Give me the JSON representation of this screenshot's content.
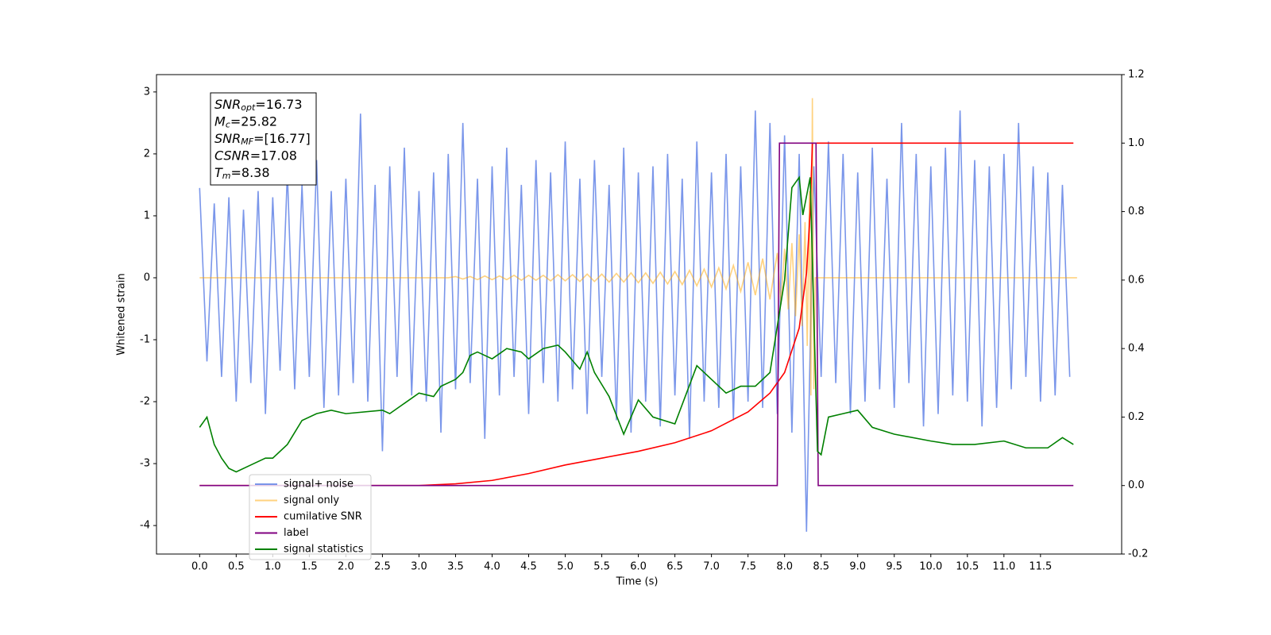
{
  "chart_data": {
    "type": "line",
    "xlabel": "Time (s)",
    "ylabel": "Whitened strain",
    "xlim": [
      -0.59,
      12.61
    ],
    "ylim": [
      -4.46,
      3.28
    ],
    "y2lim": [
      -0.2,
      1.2
    ],
    "xticks": [
      {
        "value": 0,
        "label": "0.0"
      },
      0.5,
      {
        "value": 1,
        "label": "1.0"
      },
      1.5,
      {
        "value": 2,
        "label": "2.0"
      },
      2.5,
      {
        "value": 3,
        "label": "3.0"
      },
      3.5,
      {
        "value": 4,
        "label": "4.0"
      },
      4.5,
      {
        "value": 5,
        "label": "5.0"
      },
      5.5,
      {
        "value": 6,
        "label": "6.0"
      },
      6.5,
      {
        "value": 7,
        "label": "7.0"
      },
      7.5,
      {
        "value": 8,
        "label": "8.0"
      },
      8.5,
      {
        "value": 9,
        "label": "9.0"
      },
      9.5,
      {
        "value": 10,
        "label": "10.0"
      },
      10.5,
      {
        "value": 11,
        "label": "11.0"
      },
      11.5
    ],
    "yticks": [
      -4,
      -3,
      -2,
      -1,
      0,
      1,
      2,
      3
    ],
    "y2ticks": [
      -0.2,
      {
        "value": 0,
        "label": "0.0"
      },
      0.2,
      0.4,
      0.6,
      0.8,
      {
        "value": 1,
        "label": "1.0"
      },
      1.2
    ],
    "legend": true,
    "annotation": [
      {
        "main": "SNR",
        "sub": "opt",
        "text": "=16.73"
      },
      {
        "main": "M",
        "sub": "c",
        "text": "=25.82"
      },
      {
        "main": "SNR",
        "sub": "MF",
        "text": "=[16.77]"
      },
      {
        "main": "CSNR",
        "text": "=17.08"
      },
      {
        "main": "T",
        "sub": "m",
        "text": "=8.38"
      }
    ],
    "series": [
      {
        "name": "signal+ noise",
        "color": "#4169e1",
        "alpha": 0.7,
        "x": [
          0,
          0.1,
          0.2,
          0.3,
          0.4,
          0.5,
          0.6,
          0.7,
          0.8,
          0.9,
          1,
          1.1,
          1.2,
          1.3,
          1.4,
          1.5,
          1.6,
          1.7,
          1.8,
          1.9,
          2,
          2.1,
          2.2,
          2.3,
          2.4,
          2.5,
          2.6,
          2.7,
          2.8,
          2.9,
          3,
          3.1,
          3.2,
          3.3,
          3.4,
          3.5,
          3.6,
          3.7,
          3.8,
          3.9,
          4,
          4.1,
          4.2,
          4.3,
          4.4,
          4.5,
          4.6,
          4.7,
          4.8,
          4.9,
          5,
          5.1,
          5.2,
          5.3,
          5.4,
          5.5,
          5.6,
          5.7,
          5.8,
          5.9,
          6,
          6.1,
          6.2,
          6.3,
          6.4,
          6.5,
          6.6,
          6.7,
          6.8,
          6.9,
          7,
          7.1,
          7.2,
          7.3,
          7.4,
          7.5,
          7.6,
          7.7,
          7.8,
          7.9,
          8,
          8.1,
          8.2,
          8.3,
          8.4,
          8.5,
          8.6,
          8.7,
          8.8,
          8.9,
          9,
          9.1,
          9.2,
          9.3,
          9.4,
          9.5,
          9.6,
          9.7,
          9.8,
          9.9,
          10,
          10.1,
          10.2,
          10.3,
          10.4,
          10.5,
          10.6,
          10.7,
          10.8,
          10.9,
          11,
          11.1,
          11.2,
          11.3,
          11.4,
          11.5,
          11.6,
          11.7,
          11.8,
          11.9
        ],
        "values": [
          1.45,
          -1.35,
          1.2,
          -1.6,
          1.3,
          -2.0,
          1.1,
          -1.7,
          1.4,
          -2.2,
          1.3,
          -1.5,
          1.7,
          -1.8,
          1.5,
          -1.6,
          1.9,
          -2.1,
          1.4,
          -1.9,
          1.6,
          -1.7,
          2.65,
          -2.0,
          1.5,
          -2.8,
          1.8,
          -1.6,
          2.1,
          -1.9,
          1.4,
          -2.0,
          1.7,
          -2.5,
          2.0,
          -1.8,
          2.5,
          -1.7,
          1.6,
          -2.6,
          1.8,
          -1.9,
          2.1,
          -1.6,
          1.5,
          -2.2,
          1.9,
          -1.7,
          1.7,
          -2.0,
          2.2,
          -1.8,
          1.6,
          -2.2,
          1.9,
          -1.6,
          1.5,
          -2.3,
          2.1,
          -2.5,
          1.7,
          -2.0,
          1.8,
          -2.4,
          2.0,
          -1.9,
          1.6,
          -2.6,
          2.2,
          -2.0,
          1.7,
          -2.1,
          2.0,
          -2.3,
          1.8,
          -2.0,
          2.7,
          -2.1,
          2.5,
          -2.2,
          2.3,
          -2.5,
          2.0,
          -4.1,
          1.8,
          -1.6,
          2.2,
          -1.7,
          2.0,
          -2.2,
          1.7,
          -2.0,
          2.1,
          -1.8,
          1.6,
          -2.1,
          2.5,
          -1.7,
          2.0,
          -2.4,
          1.8,
          -2.2,
          2.1,
          -1.9,
          2.7,
          -2.0,
          1.9,
          -2.4,
          1.8,
          -2.1,
          2.0,
          -1.8,
          2.5,
          -1.6,
          1.8,
          -2.0,
          1.7,
          -1.9,
          1.5,
          -1.6
        ]
      },
      {
        "name": "signal only",
        "color": "#ffa500",
        "alpha": 0.5,
        "x": [
          0,
          3.4,
          3.5,
          3.6,
          3.7,
          3.8,
          3.9,
          4,
          4.1,
          4.2,
          4.3,
          4.4,
          4.5,
          4.6,
          4.7,
          4.8,
          4.9,
          5,
          5.1,
          5.2,
          5.3,
          5.4,
          5.5,
          5.6,
          5.7,
          5.8,
          5.9,
          6,
          6.1,
          6.2,
          6.3,
          6.4,
          6.5,
          6.6,
          6.7,
          6.8,
          6.9,
          7,
          7.1,
          7.2,
          7.3,
          7.4,
          7.5,
          7.6,
          7.7,
          7.8,
          7.9,
          7.95,
          8,
          8.05,
          8.1,
          8.15,
          8.2,
          8.24,
          8.28,
          8.31,
          8.34,
          8.36,
          8.38,
          8.4,
          8.42,
          12
        ],
        "values": [
          0,
          0,
          0.02,
          -0.02,
          0.02,
          -0.03,
          0.03,
          -0.03,
          0.03,
          -0.03,
          0.04,
          -0.04,
          0.04,
          -0.04,
          0.04,
          -0.05,
          0.05,
          -0.05,
          0.05,
          -0.06,
          0.06,
          -0.06,
          0.06,
          -0.07,
          0.07,
          -0.07,
          0.08,
          -0.08,
          0.08,
          -0.09,
          0.09,
          -0.1,
          0.1,
          -0.11,
          0.12,
          -0.13,
          0.14,
          -0.15,
          0.16,
          -0.18,
          0.2,
          -0.22,
          0.25,
          -0.28,
          0.31,
          -0.35,
          0.4,
          -0.43,
          0.47,
          -0.51,
          0.56,
          -0.62,
          0.7,
          -0.78,
          0.9,
          -1.1,
          1.4,
          -1.9,
          2.9,
          -1.8,
          0,
          0
        ]
      },
      {
        "name": "cumilative SNR",
        "color": "#ff0000",
        "alpha": 1,
        "axis": "y2",
        "x": [
          0,
          3,
          3.5,
          4,
          4.5,
          5,
          5.5,
          6,
          6.5,
          7,
          7.5,
          7.8,
          8,
          8.2,
          8.3,
          8.35,
          8.38,
          11.95
        ],
        "values": [
          0,
          0,
          0.005,
          0.015,
          0.035,
          0.06,
          0.08,
          0.1,
          0.125,
          0.16,
          0.215,
          0.27,
          0.33,
          0.46,
          0.62,
          0.8,
          1,
          1
        ]
      },
      {
        "name": "label",
        "color": "#800080",
        "alpha": 1,
        "axis": "y2",
        "x": [
          0,
          7.9,
          7.93,
          8.43,
          8.46,
          11.95
        ],
        "values": [
          0,
          0,
          1,
          1,
          0,
          0
        ]
      },
      {
        "name": "signal statistics",
        "color": "#008000",
        "alpha": 1,
        "axis": "y2",
        "x": [
          0,
          0.1,
          0.2,
          0.3,
          0.4,
          0.5,
          0.7,
          0.9,
          1,
          1.2,
          1.4,
          1.6,
          1.8,
          2,
          2.5,
          2.6,
          2.8,
          3,
          3.2,
          3.3,
          3.5,
          3.6,
          3.7,
          3.8,
          4,
          4.2,
          4.4,
          4.5,
          4.7,
          4.9,
          5,
          5.2,
          5.3,
          5.4,
          5.6,
          5.8,
          6,
          6.2,
          6.5,
          6.8,
          7,
          7.2,
          7.4,
          7.6,
          7.8,
          8,
          8.1,
          8.2,
          8.25,
          8.35,
          8.45,
          8.5,
          8.6,
          8.8,
          9,
          9.2,
          9.5,
          10,
          10.3,
          10.6,
          11,
          11.3,
          11.6,
          11.8,
          11.95
        ],
        "values": [
          0.17,
          0.2,
          0.12,
          0.08,
          0.05,
          0.04,
          0.06,
          0.08,
          0.08,
          0.12,
          0.19,
          0.21,
          0.22,
          0.21,
          0.22,
          0.21,
          0.24,
          0.27,
          0.26,
          0.29,
          0.31,
          0.33,
          0.38,
          0.39,
          0.37,
          0.4,
          0.39,
          0.37,
          0.4,
          0.41,
          0.39,
          0.34,
          0.39,
          0.33,
          0.26,
          0.15,
          0.25,
          0.2,
          0.18,
          0.35,
          0.31,
          0.27,
          0.29,
          0.29,
          0.33,
          0.6,
          0.87,
          0.9,
          0.79,
          0.9,
          0.1,
          0.09,
          0.2,
          0.21,
          0.22,
          0.17,
          0.15,
          0.13,
          0.12,
          0.12,
          0.13,
          0.11,
          0.11,
          0.14,
          0.12
        ]
      }
    ]
  }
}
